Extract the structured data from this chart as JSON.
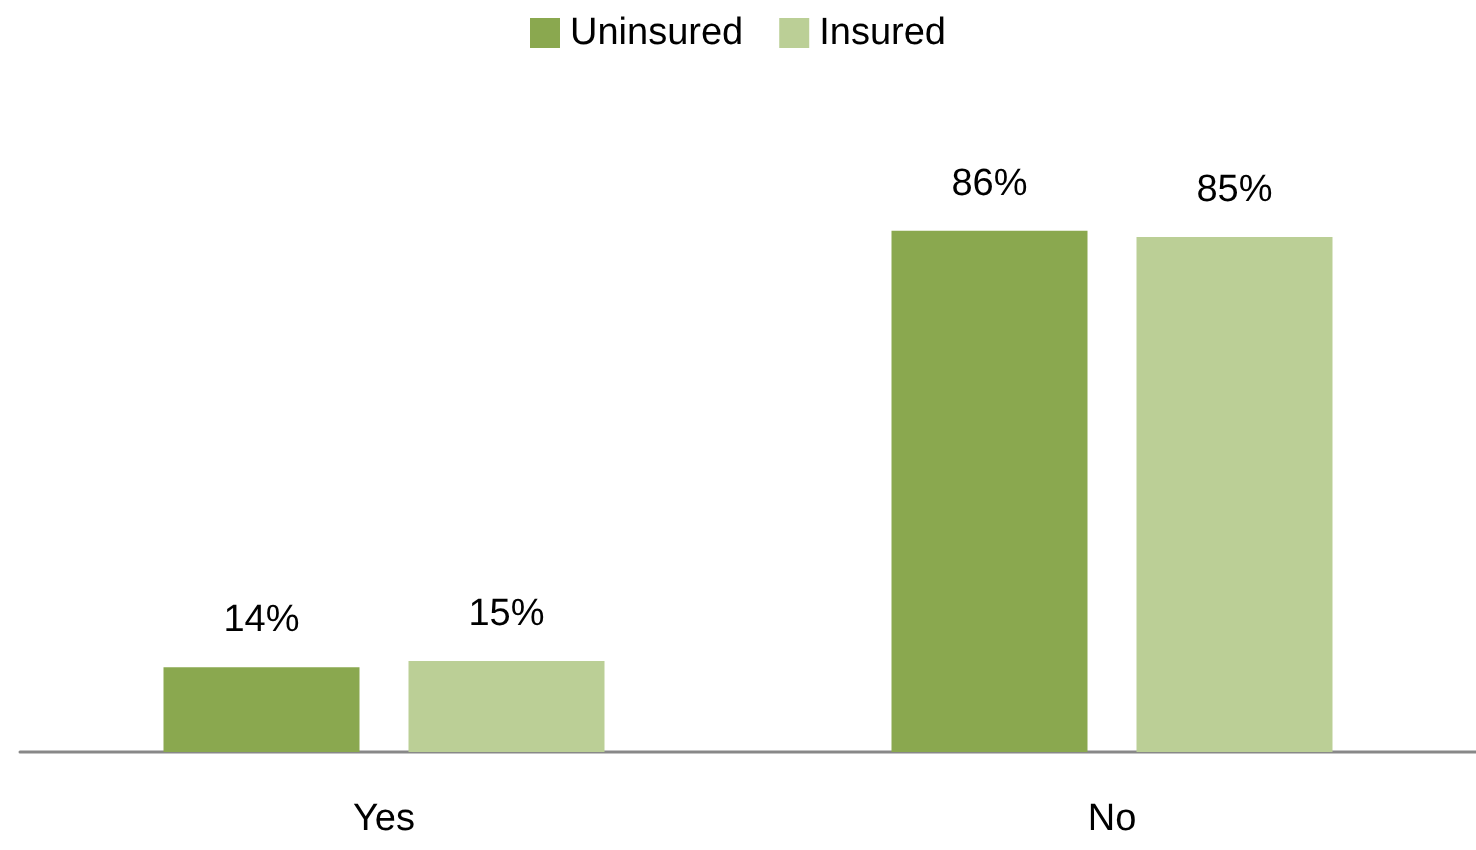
{
  "chart_data": {
    "type": "bar",
    "categories": [
      "Yes",
      "No"
    ],
    "series": [
      {
        "name": "Uninsured",
        "color": "#8aa84f",
        "values": [
          14,
          86
        ],
        "value_labels": [
          "14%",
          "86%"
        ]
      },
      {
        "name": "Insured",
        "color": "#bbcf96",
        "values": [
          15,
          85
        ],
        "value_labels": [
          "15%",
          "85%"
        ]
      }
    ],
    "legend": "top"
  }
}
